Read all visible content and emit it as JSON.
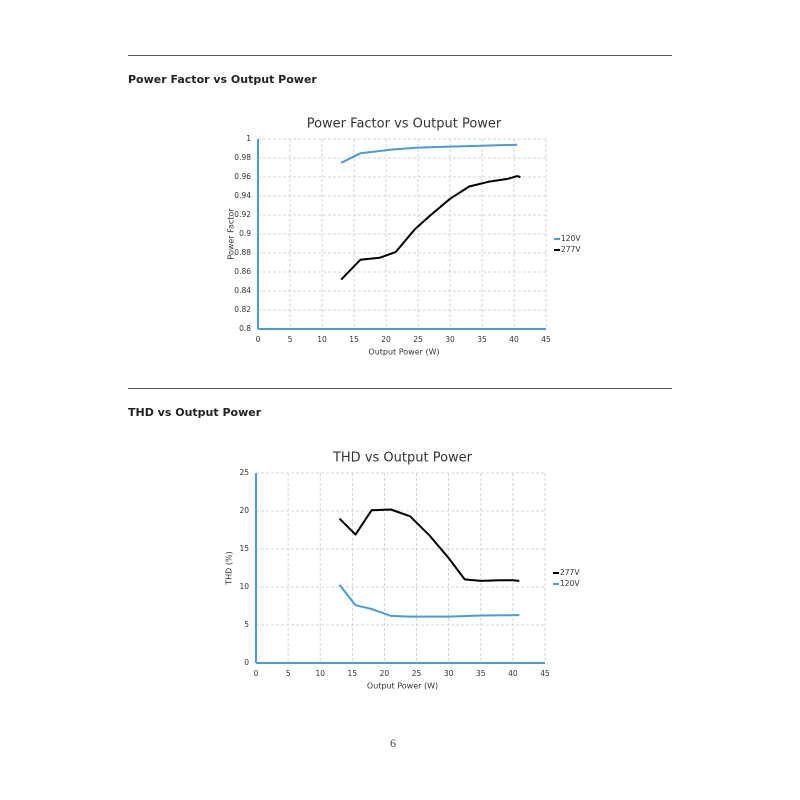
{
  "sections": [
    {
      "heading": "Power Factor vs Output Power"
    },
    {
      "heading": "THD vs Output Power"
    }
  ],
  "page_number": "6",
  "chart_data": [
    {
      "type": "line",
      "title": "Power Factor vs Output Power",
      "x_label": "Output Power (W)",
      "y_label": "Power Factor",
      "xlim": [
        0,
        45
      ],
      "xticks": [
        0,
        5,
        10,
        15,
        20,
        25,
        30,
        35,
        40,
        45
      ],
      "ylim": [
        0.8,
        1
      ],
      "yticks": [
        0.8,
        0.82,
        0.84,
        0.86,
        0.88,
        0.9,
        0.92,
        0.94,
        0.96,
        0.98,
        1
      ],
      "grid": true,
      "legend": "right",
      "series": [
        {
          "name": "120V",
          "color": "#4a9bd6",
          "x": [
            13,
            16,
            21,
            25,
            30,
            35,
            40.5
          ],
          "values": [
            0.975,
            0.985,
            0.989,
            0.991,
            0.992,
            0.993,
            0.994
          ]
        },
        {
          "name": "277V",
          "color": "#000000",
          "x": [
            13,
            16,
            19,
            21.5,
            24.5,
            27,
            30,
            33,
            36,
            39,
            40.5,
            41
          ],
          "values": [
            0.852,
            0.873,
            0.875,
            0.881,
            0.905,
            0.92,
            0.937,
            0.95,
            0.955,
            0.958,
            0.961,
            0.96
          ]
        }
      ]
    },
    {
      "type": "line",
      "title": "THD vs Output Power",
      "x_label": "Output Power (W)",
      "y_label": "THD (%)",
      "xlim": [
        0,
        45
      ],
      "xticks": [
        0,
        5,
        10,
        15,
        20,
        25,
        30,
        35,
        40,
        45
      ],
      "ylim": [
        0,
        25
      ],
      "yticks": [
        0,
        5,
        10,
        15,
        20,
        25
      ],
      "grid": true,
      "legend": "right",
      "series": [
        {
          "name": "277V",
          "color": "#000000",
          "x": [
            13,
            15.5,
            18,
            21,
            24,
            27,
            30,
            32.5,
            35,
            38,
            40,
            41
          ],
          "values": [
            19,
            16.9,
            20.1,
            20.2,
            19.3,
            16.8,
            13.8,
            11,
            10.8,
            10.9,
            10.9,
            10.8
          ]
        },
        {
          "name": "120V",
          "color": "#4a9bd6",
          "x": [
            13,
            15.5,
            18,
            21,
            24,
            27,
            30,
            35,
            41
          ],
          "values": [
            10.3,
            7.6,
            7.1,
            6.2,
            6.1,
            6.1,
            6.1,
            6.25,
            6.3
          ]
        }
      ]
    }
  ]
}
